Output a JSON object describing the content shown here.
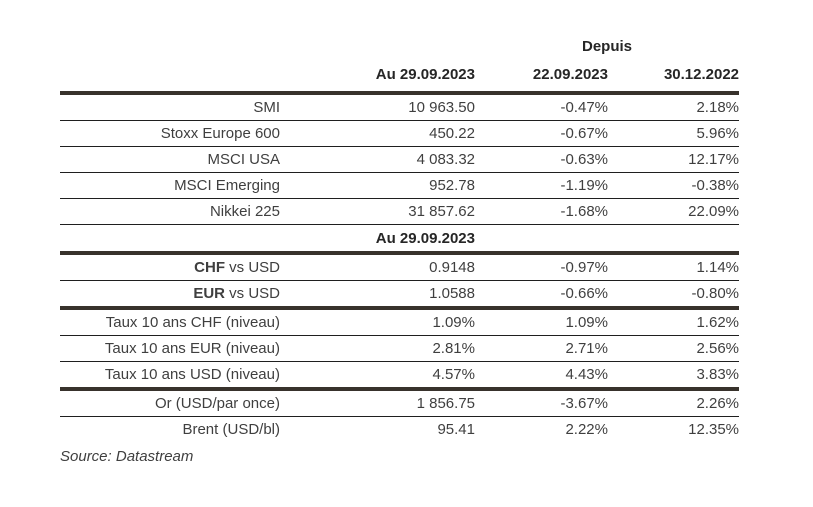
{
  "page": {
    "background": "#ffffff",
    "text_color": "#3f3f3f",
    "header_text_color": "#262626",
    "thin_rule_color": "#1f1f1f",
    "thick_rule_color": "#38322c"
  },
  "table": {
    "columns": {
      "depuis": "Depuis",
      "asof": "Au 29.09.2023",
      "since_prev_week": "22.09.2023",
      "since_year_start": "30.12.2022"
    },
    "sections": [
      {
        "name": "equity-indices",
        "rows": [
          {
            "label": "SMI",
            "value": "10 963.50",
            "chg_week": "-0.47%",
            "chg_ytd": "2.18%"
          },
          {
            "label": "Stoxx Europe 600",
            "value": "450.22",
            "chg_week": "-0.67%",
            "chg_ytd": "5.96%"
          },
          {
            "label": "MSCI USA",
            "value": "4 083.32",
            "chg_week": "-0.63%",
            "chg_ytd": "12.17%"
          },
          {
            "label": "MSCI Emerging",
            "value": "952.78",
            "chg_week": "-1.19%",
            "chg_ytd": "-0.38%"
          },
          {
            "label": "Nikkei 225",
            "value": "31 857.62",
            "chg_week": "-1.68%",
            "chg_ytd": "22.09%"
          }
        ]
      },
      {
        "name": "currencies",
        "header": "Au 29.09.2023",
        "rows": [
          {
            "label_bold": "CHF",
            "label_rest": " vs USD",
            "value": "0.9148",
            "chg_week": "-0.97%",
            "chg_ytd": "1.14%"
          },
          {
            "label_bold": "EUR",
            "label_rest": " vs USD",
            "value": "1.0588",
            "chg_week": "-0.66%",
            "chg_ytd": "-0.80%"
          }
        ]
      },
      {
        "name": "rates-10y",
        "rows": [
          {
            "label": "Taux 10 ans CHF (niveau)",
            "value": "1.09%",
            "chg_week": "1.09%",
            "chg_ytd": "1.62%"
          },
          {
            "label": "Taux 10 ans EUR (niveau)",
            "value": "2.81%",
            "chg_week": "2.71%",
            "chg_ytd": "2.56%"
          },
          {
            "label": "Taux 10 ans USD (niveau)",
            "value": "4.57%",
            "chg_week": "4.43%",
            "chg_ytd": "3.83%"
          }
        ]
      },
      {
        "name": "commodities",
        "rows": [
          {
            "label": "Or (USD/par once)",
            "value": "1 856.75",
            "chg_week": "-3.67%",
            "chg_ytd": "2.26%"
          },
          {
            "label": "Brent (USD/bl)",
            "value": "95.41",
            "chg_week": "2.22%",
            "chg_ytd": "12.35%"
          }
        ]
      }
    ],
    "source": "Source: Datastream"
  },
  "chart_data": {
    "type": "table",
    "title": "",
    "columns": [
      "",
      "Au 29.09.2023",
      "Depuis 22.09.2023",
      "Depuis 30.12.2022"
    ],
    "rows": [
      [
        "SMI",
        "10 963.50",
        "-0.47%",
        "2.18%"
      ],
      [
        "Stoxx Europe 600",
        "450.22",
        "-0.67%",
        "5.96%"
      ],
      [
        "MSCI USA",
        "4 083.32",
        "-0.63%",
        "12.17%"
      ],
      [
        "MSCI Emerging",
        "952.78",
        "-1.19%",
        "-0.38%"
      ],
      [
        "Nikkei 225",
        "31 857.62",
        "-1.68%",
        "22.09%"
      ],
      [
        "CHF vs USD",
        "0.9148",
        "-0.97%",
        "1.14%"
      ],
      [
        "EUR vs USD",
        "1.0588",
        "-0.66%",
        "-0.80%"
      ],
      [
        "Taux 10 ans CHF (niveau)",
        "1.09%",
        "1.09%",
        "1.62%"
      ],
      [
        "Taux 10 ans EUR (niveau)",
        "2.81%",
        "2.71%",
        "2.56%"
      ],
      [
        "Taux 10 ans USD (niveau)",
        "4.57%",
        "4.43%",
        "3.83%"
      ],
      [
        "Or (USD/par once)",
        "1 856.75",
        "-3.67%",
        "2.26%"
      ],
      [
        "Brent (USD/bl)",
        "95.41",
        "2.22%",
        "12.35%"
      ]
    ],
    "mid_section_header": "Au 29.09.2023",
    "source": "Source: Datastream"
  }
}
